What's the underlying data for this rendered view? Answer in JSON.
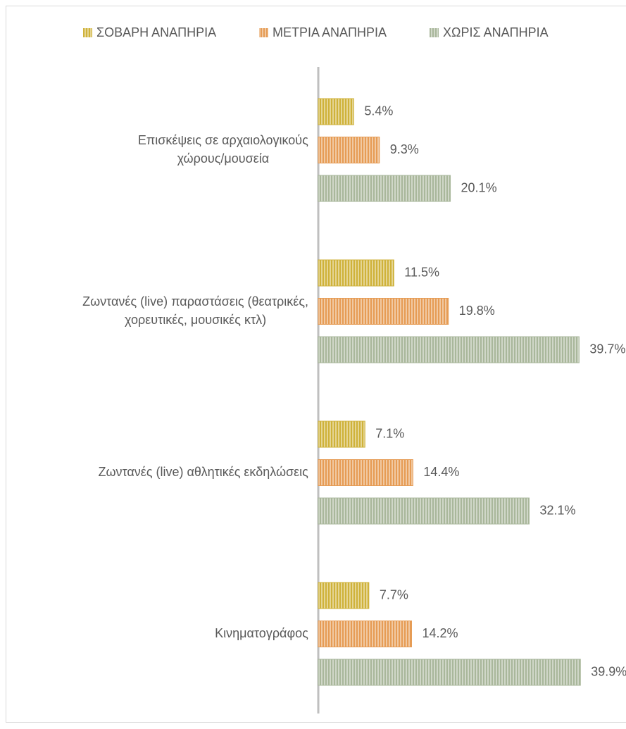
{
  "chart_data": {
    "type": "hbar",
    "categories": [
      "Επισκέψεις σε αρχαιολογικούς\nχώρους/μουσεία",
      "Ζωντανές (live) παραστάσεις (θεατρικές,\nχορευτικές, μουσικές κτλ)",
      "Ζωντανές (live) αθλητικές εκδηλώσεις",
      "Κινηματογράφος"
    ],
    "series": [
      {
        "name": "ΣΟΒΑΡΗ ΑΝΑΠΗΡΙΑ",
        "color": "#cfb23a",
        "values": [
          5.4,
          11.5,
          7.1,
          7.7
        ],
        "value_labels": [
          "5.4%",
          "11.5%",
          "7.1%",
          "7.7%"
        ]
      },
      {
        "name": "ΜΕΤΡΙΑ ΑΝΑΠΗΡΙΑ",
        "color": "#e69c55",
        "values": [
          9.3,
          19.8,
          14.4,
          14.2
        ],
        "value_labels": [
          "9.3%",
          "19.8%",
          "14.4%",
          "14.2%"
        ]
      },
      {
        "name": "ΧΩΡΙΣ ΑΝΑΠΗΡΙΑ",
        "color": "#a9b79b",
        "values": [
          20.1,
          39.7,
          32.1,
          39.9
        ],
        "value_labels": [
          "20.1%",
          "39.7%",
          "32.1%",
          "39.9%"
        ]
      }
    ],
    "legend": "top"
  }
}
